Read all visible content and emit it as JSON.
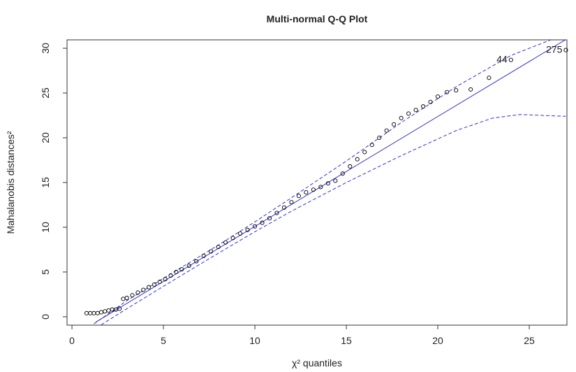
{
  "chart_data": {
    "type": "qqplot",
    "title": "Multi-normal Q-Q Plot",
    "xlabel": "χ² quantiles",
    "ylabel": "Mahalanobis distances²",
    "xlim": [
      -0.27,
      27.06
    ],
    "ylim": [
      -0.94,
      30.94
    ],
    "xticks": [
      0,
      5,
      10,
      15,
      20,
      25
    ],
    "yticks": [
      0,
      5,
      10,
      15,
      20,
      25,
      30
    ],
    "point_color": "#000000",
    "line_color": "#3333cc",
    "x": [
      0.8,
      1.0,
      1.2,
      1.4,
      1.6,
      1.8,
      2.0,
      2.2,
      2.4,
      2.6,
      2.8,
      3.0,
      3.3,
      3.6,
      3.9,
      4.2,
      4.5,
      4.8,
      5.1,
      5.4,
      5.7,
      6.0,
      6.4,
      6.8,
      7.2,
      7.6,
      8.0,
      8.4,
      8.8,
      9.2,
      9.6,
      10.0,
      10.4,
      10.8,
      11.2,
      11.6,
      12.0,
      12.4,
      12.8,
      13.2,
      13.6,
      14.0,
      14.4,
      14.8,
      15.2,
      15.6,
      16.0,
      16.4,
      16.8,
      17.2,
      17.6,
      18.0,
      18.4,
      18.8,
      19.2,
      19.6,
      20.0,
      20.5,
      21.0,
      21.8,
      22.8,
      24.0,
      27.0
    ],
    "values": [
      0.4,
      0.4,
      0.4,
      0.4,
      0.5,
      0.6,
      0.7,
      0.8,
      0.8,
      0.9,
      2.0,
      2.1,
      2.4,
      2.7,
      3.0,
      3.3,
      3.6,
      3.9,
      4.2,
      4.6,
      5.0,
      5.3,
      5.7,
      6.2,
      6.8,
      7.3,
      7.8,
      8.3,
      8.8,
      9.3,
      9.7,
      10.1,
      10.5,
      11.0,
      11.6,
      12.2,
      12.8,
      13.5,
      13.9,
      14.2,
      14.5,
      14.9,
      15.2,
      16.0,
      16.8,
      17.6,
      18.4,
      19.2,
      20.0,
      20.8,
      21.5,
      22.2,
      22.7,
      23.1,
      23.5,
      24.0,
      24.6,
      25.1,
      25.3,
      25.4,
      26.7,
      28.7,
      29.8
    ],
    "point_labels": [
      null,
      null,
      null,
      null,
      null,
      null,
      null,
      null,
      null,
      null,
      null,
      null,
      null,
      null,
      null,
      null,
      null,
      null,
      null,
      null,
      null,
      null,
      null,
      null,
      null,
      null,
      null,
      null,
      null,
      null,
      null,
      null,
      null,
      null,
      null,
      null,
      null,
      null,
      null,
      null,
      null,
      null,
      null,
      null,
      null,
      null,
      null,
      null,
      null,
      null,
      null,
      null,
      null,
      null,
      null,
      null,
      null,
      null,
      null,
      null,
      null,
      "44",
      "275"
    ],
    "reference": {
      "x": [
        1.3,
        27.1
      ],
      "values": [
        -0.6,
        31.1
      ]
    },
    "envelope_upper": {
      "x": [
        1.2,
        3,
        5,
        8,
        10,
        12,
        15,
        18,
        21,
        24,
        26.5
      ],
      "values": [
        -0.8,
        1.8,
        4.3,
        8.0,
        10.6,
        13.3,
        17.4,
        21.7,
        25.7,
        29.2,
        31.2
      ]
    },
    "envelope_lower": {
      "x": [
        1.6,
        3,
        5,
        8,
        10,
        12,
        15,
        18,
        21,
        23,
        24.5,
        27
      ],
      "values": [
        -0.9,
        0.9,
        3.4,
        7.1,
        9.5,
        11.8,
        15.0,
        18.0,
        20.8,
        22.2,
        22.6,
        22.4
      ]
    }
  }
}
